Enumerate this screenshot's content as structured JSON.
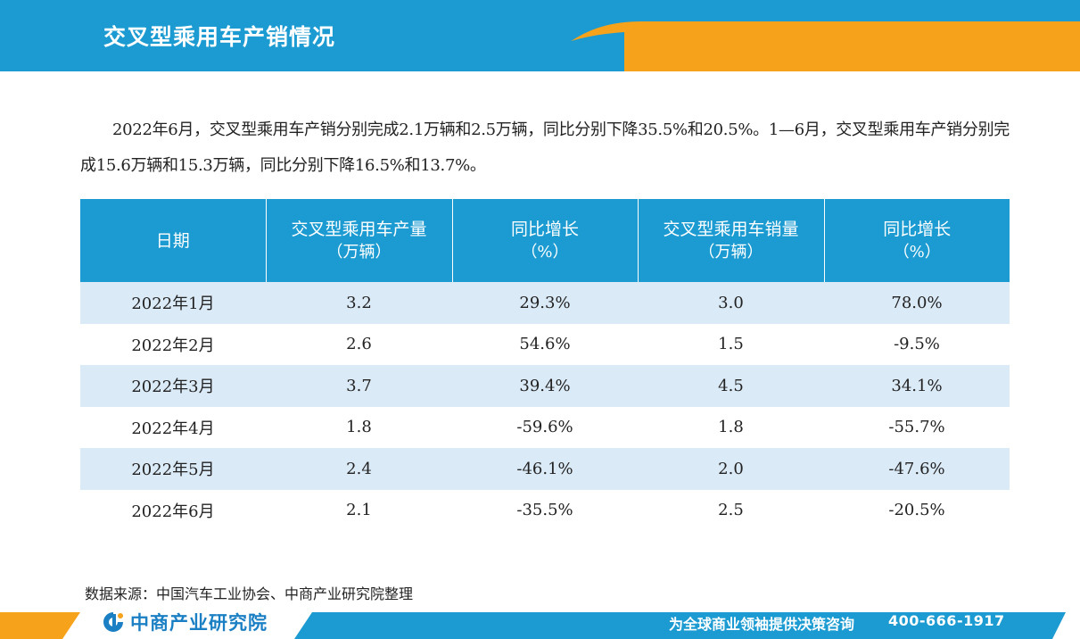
{
  "header": {
    "title": "交叉型乘用车产销情况"
  },
  "intro": {
    "text": "2022年6月，交叉型乘用车产销分别完成2.1万辆和2.5万辆，同比分别下降35.5%和20.5%。1—6月，交叉型乘用车产销分别完成15.6万辆和15.3万辆，同比分别下降16.5%和13.7%。"
  },
  "table": {
    "headers": [
      {
        "line1": "日期",
        "line2": ""
      },
      {
        "line1": "交叉型乘用车产量",
        "line2": "（万辆）"
      },
      {
        "line1": "同比增长",
        "line2": "（%）"
      },
      {
        "line1": "交叉型乘用车销量",
        "line2": "（万辆）"
      },
      {
        "line1": "同比增长",
        "line2": "（%）"
      }
    ],
    "rows": [
      [
        "2022年1月",
        "3.2",
        "29.3%",
        "3.0",
        "78.0%"
      ],
      [
        "2022年2月",
        "2.6",
        "54.6%",
        "1.5",
        "-9.5%"
      ],
      [
        "2022年3月",
        "3.7",
        "39.4%",
        "4.5",
        "34.1%"
      ],
      [
        "2022年4月",
        "1.8",
        "-59.6%",
        "1.8",
        "-55.7%"
      ],
      [
        "2022年5月",
        "2.4",
        "-46.1%",
        "2.0",
        "-47.6%"
      ],
      [
        "2022年6月",
        "2.1",
        "-35.5%",
        "2.5",
        "-20.5%"
      ]
    ]
  },
  "source": {
    "text": "数据来源：中国汽车工业协会、中商产业研究院整理"
  },
  "footer": {
    "logo_text": "中商产业研究院",
    "slogan": "为全球商业领袖提供决策咨询",
    "phone": "400-666-1917"
  },
  "colors": {
    "primary_blue": "#1b9bd1",
    "accent_orange": "#f7a21b",
    "row_stripe": "#dbeaf7"
  },
  "icons": {
    "logo": "company-logo-icon"
  }
}
